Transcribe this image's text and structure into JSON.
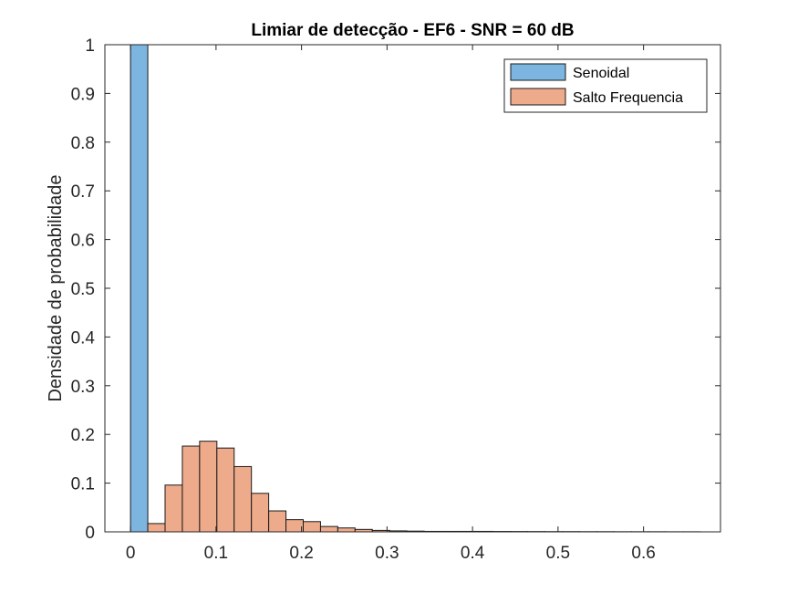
{
  "chart_data": {
    "type": "bar",
    "subtype": "histogram",
    "title": "Limiar de detecção - EF6 - SNR = 60 dB",
    "xlabel": "",
    "ylabel": "Densidade de probabilidade",
    "xlim": [
      -0.03,
      0.69
    ],
    "ylim": [
      0,
      1
    ],
    "xticks": [
      "0",
      "0.1",
      "0.2",
      "0.3",
      "0.4",
      "0.5",
      "0.6"
    ],
    "xtick_values": [
      0,
      0.1,
      0.2,
      0.3,
      0.4,
      0.5,
      0.6
    ],
    "yticks": [
      "0",
      "0.1",
      "0.2",
      "0.3",
      "0.4",
      "0.5",
      "0.6",
      "0.7",
      "0.8",
      "0.9",
      "1"
    ],
    "ytick_values": [
      0,
      0.1,
      0.2,
      0.3,
      0.4,
      0.5,
      0.6,
      0.7,
      0.8,
      0.9,
      1
    ],
    "grid": false,
    "legend_position": "top-right",
    "bin_width": 0.0202,
    "series": [
      {
        "name": "Senoidal",
        "color": "#7cb5e0",
        "bins_start": 0,
        "values": [
          1.0
        ]
      },
      {
        "name": "Salto Frequencia",
        "color": "#eeab8b",
        "bins_start": 0.0202,
        "values": [
          0.017,
          0.096,
          0.176,
          0.186,
          0.172,
          0.134,
          0.079,
          0.043,
          0.025,
          0.021,
          0.011,
          0.008,
          0.005,
          0.003,
          0.002,
          0.0015,
          0.001,
          0.001,
          0.001,
          0.001,
          0.0008,
          0.0007,
          0.0006,
          0.0005,
          0.0005,
          0.0004,
          0.0004,
          0.0003,
          0.0003,
          0.0003,
          0.0002,
          0.0002
        ]
      }
    ]
  }
}
